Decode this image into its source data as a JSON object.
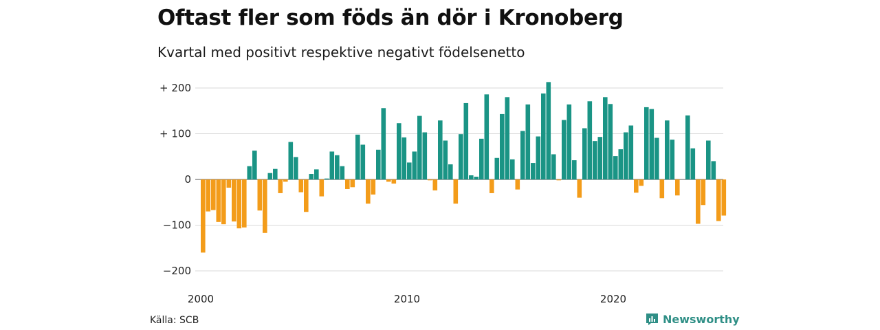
{
  "title": "Oftast fler som föds än dör i Kronoberg",
  "subtitle": "Kvartal med positivt respektive negativt födelsenetto",
  "source": "Källa: SCB",
  "brand": {
    "name": "Newsworthy",
    "icon": "newsworthy-logo-icon",
    "color": "#2f8f86"
  },
  "colors": {
    "positive": "#1a9485",
    "negative": "#f39c1a",
    "grid": "#d9d9d9",
    "axis_text": "#222222"
  },
  "chart_data": {
    "type": "bar",
    "title": "Oftast fler som föds än dör i Kronoberg",
    "subtitle": "Kvartal med positivt respektive negativt födelsenetto",
    "xlabel": "",
    "ylabel": "",
    "ylim": [
      -220,
      210
    ],
    "x_tick_labels": [
      "2000",
      "2010",
      "2020"
    ],
    "x_tick_years": [
      2000,
      2010,
      2020
    ],
    "y_ticks": [
      200,
      100,
      0,
      -100,
      -200
    ],
    "y_tick_labels": [
      "+ 200",
      "+ 100",
      "0",
      "−100",
      "−200"
    ],
    "grid": true,
    "legend": "none",
    "start_year": 2000,
    "periods_per_year": 4,
    "values": [
      -160,
      -70,
      -67,
      -93,
      -98,
      -18,
      -92,
      -107,
      -105,
      29,
      63,
      -68,
      -117,
      14,
      23,
      -30,
      -5,
      82,
      49,
      -28,
      -71,
      12,
      22,
      -37,
      2,
      61,
      53,
      29,
      -21,
      -17,
      98,
      76,
      -53,
      -33,
      65,
      156,
      -5,
      -9,
      123,
      92,
      37,
      61,
      139,
      103,
      -2,
      -24,
      129,
      85,
      33,
      -53,
      99,
      167,
      9,
      6,
      89,
      186,
      -30,
      47,
      143,
      180,
      44,
      -22,
      106,
      164,
      36,
      94,
      188,
      213,
      55,
      -2,
      130,
      164,
      42,
      -40,
      112,
      171,
      84,
      93,
      180,
      165,
      51,
      66,
      103,
      118,
      -29,
      -14,
      158,
      154,
      91,
      -41,
      129,
      87,
      -35,
      0,
      140,
      68,
      -97,
      -56,
      85,
      40,
      -91,
      -79
    ]
  }
}
